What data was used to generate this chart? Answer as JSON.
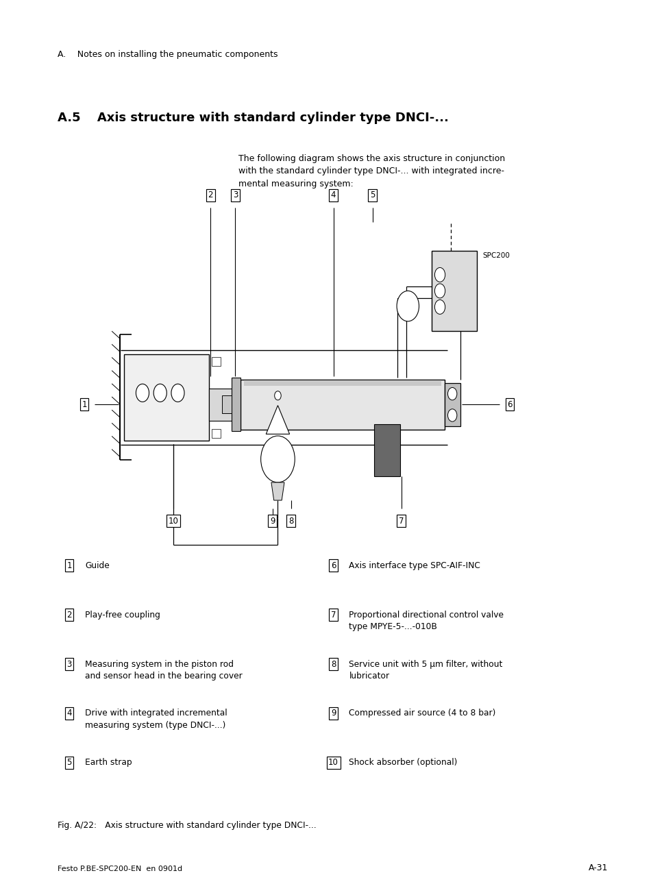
{
  "page_width": 9.54,
  "page_height": 13.06,
  "bg_color": "#ffffff",
  "header_text": "A.  Notes on installing the pneumatic components",
  "section_title": "A.5  Axis structure with standard cylinder type DNCI-...",
  "body_text": "The following diagram shows the axis structure in conjunction\nwith the standard cylinder type DNCI-... with integrated incre-\nmental measuring system:",
  "legend_items_left": [
    {
      "num": "1",
      "text": "Guide"
    },
    {
      "num": "2",
      "text": "Play-free coupling"
    },
    {
      "num": "3",
      "text": "Measuring system in the piston rod\nand sensor head in the bearing cover"
    },
    {
      "num": "4",
      "text": "Drive with integrated incremental\nmeasuring system (type DNCI-...)"
    },
    {
      "num": "5",
      "text": "Earth strap"
    }
  ],
  "legend_items_right": [
    {
      "num": "6",
      "text": "Axis interface type SPC-AIF-INC"
    },
    {
      "num": "7",
      "text": "Proportional directional control valve\ntype MPYE-5-...-010B"
    },
    {
      "num": "8",
      "text": "Service unit with 5 μm filter, without\nlubricator"
    },
    {
      "num": "9",
      "text": "Compressed air source (4 to 8 bar)"
    },
    {
      "num": "10",
      "text": "Shock absorber (optional)"
    }
  ],
  "fig_caption": "Fig. A/22: Axis structure with standard cylinder type DNCI-...",
  "footer_left": "Festo P.BE-SPC200-EN  en 0901d",
  "footer_right": "A-31"
}
